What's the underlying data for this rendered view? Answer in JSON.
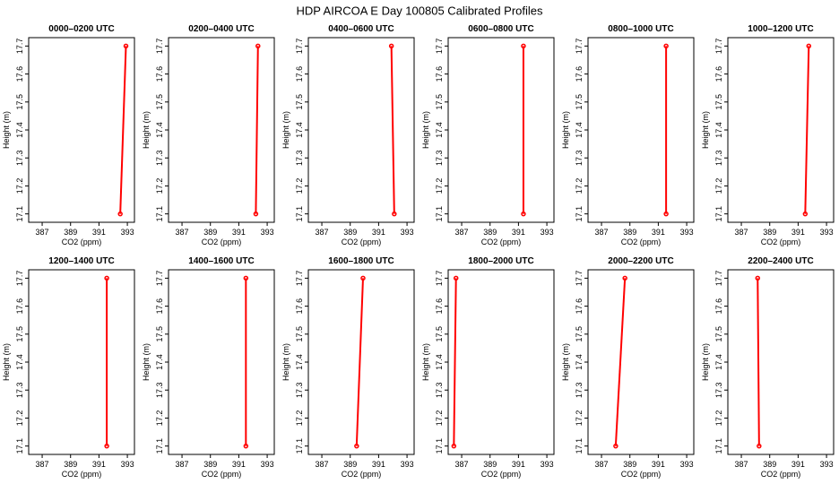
{
  "title": "HDP AIRCOA E  Day 100805  Calibrated Profiles",
  "chart_data": [
    {
      "type": "line",
      "title": "0000–0200 UTC",
      "x_label": "CO2 (ppm)",
      "y_label": "Height (m)",
      "color": "#ff0000",
      "x": [
        392.5,
        392.9
      ],
      "y": [
        17.1,
        17.7
      ],
      "xlim": [
        386.05,
        393.5
      ],
      "ylim": [
        17.07,
        17.73
      ],
      "xticks": [
        387,
        389,
        391,
        393
      ],
      "yticks": [
        17.1,
        17.2,
        17.3,
        17.4,
        17.5,
        17.6,
        17.7
      ]
    },
    {
      "type": "line",
      "title": "0200–0400 UTC",
      "x_label": "CO2 (ppm)",
      "y_label": "Height (m)",
      "color": "#ff0000",
      "x": [
        392.2,
        392.35
      ],
      "y": [
        17.1,
        17.7
      ],
      "xlim": [
        386.05,
        393.5
      ],
      "ylim": [
        17.07,
        17.73
      ],
      "xticks": [
        387,
        389,
        391,
        393
      ],
      "yticks": [
        17.1,
        17.2,
        17.3,
        17.4,
        17.5,
        17.6,
        17.7
      ]
    },
    {
      "type": "line",
      "title": "0400–0600 UTC",
      "x_label": "CO2 (ppm)",
      "y_label": "Height (m)",
      "color": "#ff0000",
      "x": [
        392.1,
        391.9
      ],
      "y": [
        17.1,
        17.7
      ],
      "xlim": [
        386.05,
        393.5
      ],
      "ylim": [
        17.07,
        17.73
      ],
      "xticks": [
        387,
        389,
        391,
        393
      ],
      "yticks": [
        17.1,
        17.2,
        17.3,
        17.4,
        17.5,
        17.6,
        17.7
      ]
    },
    {
      "type": "line",
      "title": "0600–0800 UTC",
      "x_label": "CO2 (ppm)",
      "y_label": "Height (m)",
      "color": "#ff0000",
      "x": [
        391.35,
        391.35
      ],
      "y": [
        17.1,
        17.7
      ],
      "xlim": [
        386.05,
        393.5
      ],
      "ylim": [
        17.07,
        17.73
      ],
      "xticks": [
        387,
        389,
        391,
        393
      ],
      "yticks": [
        17.1,
        17.2,
        17.3,
        17.4,
        17.5,
        17.6,
        17.7
      ]
    },
    {
      "type": "line",
      "title": "0800–1000 UTC",
      "x_label": "CO2 (ppm)",
      "y_label": "Height (m)",
      "color": "#ff0000",
      "x": [
        391.55,
        391.55
      ],
      "y": [
        17.1,
        17.7
      ],
      "xlim": [
        386.05,
        393.5
      ],
      "ylim": [
        17.07,
        17.73
      ],
      "xticks": [
        387,
        389,
        391,
        393
      ],
      "yticks": [
        17.1,
        17.2,
        17.3,
        17.4,
        17.5,
        17.6,
        17.7
      ]
    },
    {
      "type": "line",
      "title": "1000–1200 UTC",
      "x_label": "CO2 (ppm)",
      "y_label": "Height (m)",
      "color": "#ff0000",
      "x": [
        391.5,
        391.75
      ],
      "y": [
        17.1,
        17.7
      ],
      "xlim": [
        386.05,
        393.5
      ],
      "ylim": [
        17.07,
        17.73
      ],
      "xticks": [
        387,
        389,
        391,
        393
      ],
      "yticks": [
        17.1,
        17.2,
        17.3,
        17.4,
        17.5,
        17.6,
        17.7
      ]
    },
    {
      "type": "line",
      "title": "1200–1400 UTC",
      "x_label": "CO2 (ppm)",
      "y_label": "Height (m)",
      "color": "#ff0000",
      "x": [
        391.55,
        391.55
      ],
      "y": [
        17.1,
        17.7
      ],
      "xlim": [
        386.05,
        393.5
      ],
      "ylim": [
        17.07,
        17.73
      ],
      "xticks": [
        387,
        389,
        391,
        393
      ],
      "yticks": [
        17.1,
        17.2,
        17.3,
        17.4,
        17.5,
        17.6,
        17.7
      ]
    },
    {
      "type": "line",
      "title": "1400–1600 UTC",
      "x_label": "CO2 (ppm)",
      "y_label": "Height (m)",
      "color": "#ff0000",
      "x": [
        391.5,
        391.5
      ],
      "y": [
        17.1,
        17.7
      ],
      "xlim": [
        386.05,
        393.5
      ],
      "ylim": [
        17.07,
        17.73
      ],
      "xticks": [
        387,
        389,
        391,
        393
      ],
      "yticks": [
        17.1,
        17.2,
        17.3,
        17.4,
        17.5,
        17.6,
        17.7
      ]
    },
    {
      "type": "line",
      "title": "1600–1800 UTC",
      "x_label": "CO2 (ppm)",
      "y_label": "Height (m)",
      "color": "#ff0000",
      "x": [
        389.45,
        389.9
      ],
      "y": [
        17.1,
        17.7
      ],
      "xlim": [
        386.05,
        393.5
      ],
      "ylim": [
        17.07,
        17.73
      ],
      "xticks": [
        387,
        389,
        391,
        393
      ],
      "yticks": [
        17.1,
        17.2,
        17.3,
        17.4,
        17.5,
        17.6,
        17.7
      ]
    },
    {
      "type": "line",
      "title": "1800–2000 UTC",
      "x_label": "CO2 (ppm)",
      "y_label": "Height (m)",
      "color": "#ff0000",
      "x": [
        386.45,
        386.6
      ],
      "y": [
        17.1,
        17.7
      ],
      "xlim": [
        386.05,
        393.5
      ],
      "ylim": [
        17.07,
        17.73
      ],
      "xticks": [
        387,
        389,
        391,
        393
      ],
      "yticks": [
        17.1,
        17.2,
        17.3,
        17.4,
        17.5,
        17.6,
        17.7
      ]
    },
    {
      "type": "line",
      "title": "2000–2200 UTC",
      "x_label": "CO2 (ppm)",
      "y_label": "Height (m)",
      "color": "#ff0000",
      "x": [
        388.0,
        388.65
      ],
      "y": [
        17.1,
        17.7
      ],
      "xlim": [
        386.05,
        393.5
      ],
      "ylim": [
        17.07,
        17.73
      ],
      "xticks": [
        387,
        389,
        391,
        393
      ],
      "yticks": [
        17.1,
        17.2,
        17.3,
        17.4,
        17.5,
        17.6,
        17.7
      ]
    },
    {
      "type": "line",
      "title": "2200–2400 UTC",
      "x_label": "CO2 (ppm)",
      "y_label": "Height (m)",
      "color": "#ff0000",
      "x": [
        388.25,
        388.15
      ],
      "y": [
        17.1,
        17.7
      ],
      "xlim": [
        386.05,
        393.5
      ],
      "ylim": [
        17.07,
        17.73
      ],
      "xticks": [
        387,
        389,
        391,
        393
      ],
      "yticks": [
        17.1,
        17.2,
        17.3,
        17.4,
        17.5,
        17.6,
        17.7
      ]
    }
  ]
}
